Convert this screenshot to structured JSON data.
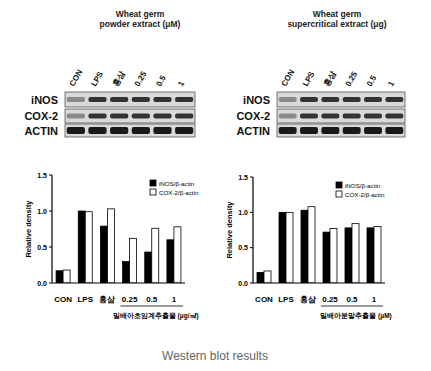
{
  "blots": [
    {
      "title": [
        "Wheat germ",
        "powder extract (μM)"
      ],
      "lanes": [
        "CON",
        "LPS",
        "홍삼",
        "0.25",
        "0.5",
        "1"
      ],
      "rows": [
        "iNOS",
        "COX-2",
        "ACTIN"
      ]
    },
    {
      "title": [
        "Wheat germ",
        "supercritical extract (μg)"
      ],
      "lanes": [
        "CON",
        "LPS",
        "홍삼",
        "0.25",
        "0.5",
        "1"
      ],
      "rows": [
        "iNOS",
        "COX-2",
        "ACTIN"
      ]
    }
  ],
  "chart_data": [
    {
      "type": "bar",
      "categories": [
        "CON",
        "LPS",
        "홍삼",
        "0.25",
        "0.5",
        "1"
      ],
      "series": [
        {
          "name": "iNOS/β-actin",
          "color": "#000000",
          "values": [
            0.17,
            1.0,
            0.79,
            0.3,
            0.43,
            0.6
          ]
        },
        {
          "name": "COX-2/β-actin",
          "color": "#ffffff",
          "values": [
            0.18,
            0.99,
            1.03,
            0.62,
            0.76,
            0.78
          ]
        }
      ],
      "ylim": [
        0,
        1.5
      ],
      "yticks": [
        {
          "value": 0,
          "label": "0.0"
        },
        {
          "value": 0.5,
          "label": "0.5"
        },
        {
          "value": 1,
          "label": "1.0"
        },
        {
          "value": 1.5,
          "label": "1.5"
        }
      ],
      "y_label": "Relative density",
      "x_label": "밀배아초임계추출물 (μg/㎖)",
      "legend": "top-right"
    },
    {
      "type": "bar",
      "categories": [
        "CON",
        "LPS",
        "홍삼",
        "0.25",
        "0.5",
        "1"
      ],
      "series": [
        {
          "name": "iNOS/β-actin",
          "color": "#000000",
          "values": [
            0.15,
            1.0,
            1.03,
            0.72,
            0.78,
            0.78
          ]
        },
        {
          "name": "COX-2/β-actin",
          "color": "#ffffff",
          "values": [
            0.17,
            1.0,
            1.08,
            0.77,
            0.84,
            0.8
          ]
        }
      ],
      "ylim": [
        0,
        1.5
      ],
      "yticks": [
        {
          "value": 0,
          "label": "0.0"
        },
        {
          "value": 0.5,
          "label": "0.5"
        },
        {
          "value": 1,
          "label": "1.0"
        },
        {
          "value": 1.5,
          "label": "1.5"
        }
      ],
      "y_label": "Relative density",
      "x_label": "밀배아분말추출물 (μM)",
      "legend": "top-right"
    }
  ],
  "caption": "Western blot results"
}
